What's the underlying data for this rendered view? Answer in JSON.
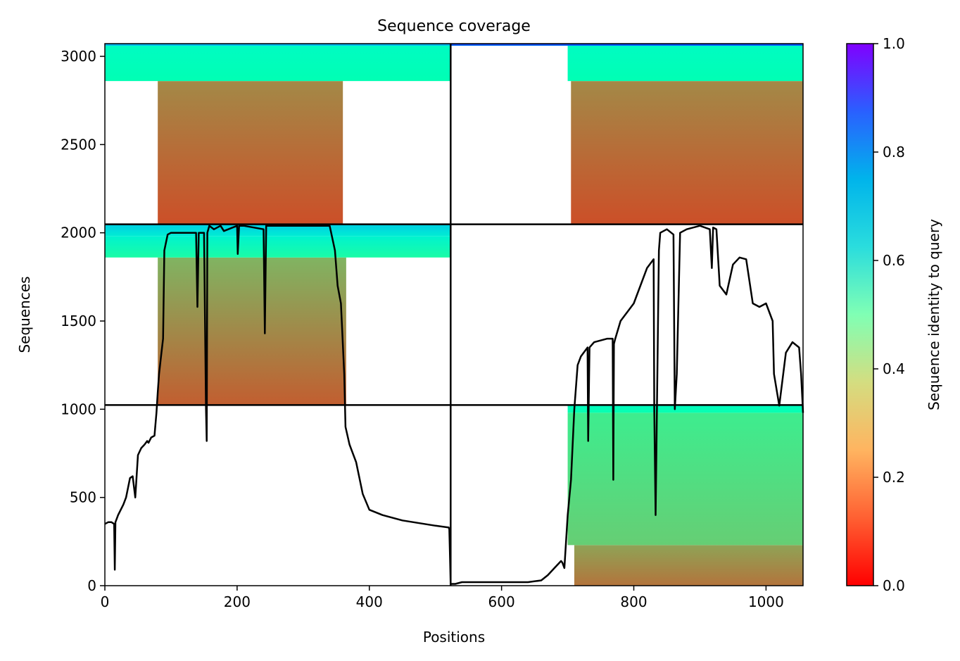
{
  "chart_data": {
    "type": "heatmap",
    "title": "Sequence coverage",
    "xlabel": "Positions",
    "ylabel": "Sequences",
    "xlim": [
      0,
      1056
    ],
    "ylim": [
      0,
      3072
    ],
    "x_ticks": [
      0,
      200,
      400,
      600,
      800,
      1000
    ],
    "y_ticks": [
      0,
      500,
      1000,
      1500,
      2000,
      2500,
      3000
    ],
    "colorbar": {
      "label": "Sequence identity to query",
      "colormap": "rainbow_r",
      "range": [
        0,
        1
      ],
      "ticks": [
        0.0,
        0.2,
        0.4,
        0.6,
        0.8,
        1.0
      ],
      "tick_labels": [
        "0.0",
        "0.2",
        "0.4",
        "0.6",
        "0.8",
        "1.0"
      ]
    },
    "chain_boundaries": {
      "x": [
        523
      ],
      "y": [
        1024,
        2048
      ]
    },
    "blocks": [
      {
        "x": [
          0,
          523
        ],
        "y": [
          1024,
          2048
        ],
        "segments": [
          {
            "y": [
              1024,
              1860
            ],
            "x": [
              80,
              365
            ],
            "identity_bottom": 0.12,
            "identity_top": 0.25
          },
          {
            "y": [
              1860,
              1980
            ],
            "x": [
              0,
              523
            ],
            "identity_bottom": 0.45,
            "identity_top": 0.6
          },
          {
            "y": [
              1980,
              2048
            ],
            "x": [
              0,
              523
            ],
            "identity_bottom": 0.62,
            "identity_top": 0.7
          }
        ]
      },
      {
        "x": [
          0,
          523
        ],
        "y": [
          2048,
          3072
        ],
        "segments": [
          {
            "y": [
              2048,
              2860
            ],
            "x": [
              80,
              360
            ],
            "identity_bottom": 0.1,
            "identity_top": 0.18
          },
          {
            "y": [
              2860,
              3060
            ],
            "x": [
              0,
              523
            ],
            "identity_bottom": 0.5,
            "identity_top": 0.55
          },
          {
            "y": [
              3060,
              3072
            ],
            "x": [
              0,
              523
            ],
            "identity_bottom": 0.72,
            "identity_top": 0.78
          }
        ]
      },
      {
        "x": [
          523,
          1056
        ],
        "y": [
          2048,
          3072
        ],
        "segments": [
          {
            "y": [
              2048,
              2860
            ],
            "x": [
              705,
              1056
            ],
            "identity_bottom": 0.1,
            "identity_top": 0.18
          },
          {
            "y": [
              2860,
              3060
            ],
            "x": [
              700,
              1056
            ],
            "identity_bottom": 0.5,
            "identity_top": 0.55
          },
          {
            "y": [
              3060,
              3072
            ],
            "x": [
              523,
              1056
            ],
            "identity_bottom": 0.85,
            "identity_top": 0.95
          }
        ]
      },
      {
        "x": [
          523,
          1056
        ],
        "y": [
          0,
          1024
        ],
        "segments": [
          {
            "y": [
              0,
              230
            ],
            "x": [
              710,
              1056
            ],
            "identity_bottom": 0.15,
            "identity_top": 0.22
          },
          {
            "y": [
              230,
              980
            ],
            "x": [
              700,
              1056
            ],
            "identity_bottom": 0.3,
            "identity_top": 0.38
          },
          {
            "y": [
              980,
              1024
            ],
            "x": [
              700,
              1056
            ],
            "identity_bottom": 0.48,
            "identity_top": 0.55
          }
        ]
      }
    ],
    "coverage_line": {
      "x": [
        0,
        5,
        10,
        14,
        15,
        16,
        18,
        20,
        28,
        32,
        38,
        42,
        46,
        50,
        55,
        60,
        64,
        66,
        70,
        75,
        78,
        80,
        82,
        85,
        88,
        90,
        95,
        100,
        120,
        138,
        140,
        142,
        145,
        150,
        153,
        154,
        155,
        158,
        165,
        175,
        180,
        200,
        201,
        203,
        210,
        240,
        242,
        244,
        250,
        300,
        340,
        348,
        352,
        357,
        362,
        364,
        370,
        380,
        390,
        400,
        420,
        450,
        500,
        520,
        521,
        522,
        523,
        530,
        540,
        560,
        600,
        640,
        660,
        670,
        680,
        690,
        692,
        695,
        700,
        705,
        710,
        715,
        720,
        730,
        731,
        733,
        740,
        760,
        768,
        769,
        770,
        772,
        780,
        800,
        820,
        830,
        831,
        833,
        838,
        840,
        845,
        850,
        860,
        862,
        865,
        870,
        880,
        900,
        915,
        918,
        920,
        925,
        930,
        940,
        950,
        960,
        970,
        980,
        990,
        1000,
        1010,
        1012,
        1020,
        1030,
        1040,
        1050,
        1053,
        1055,
        1056
      ],
      "y": [
        350,
        360,
        360,
        350,
        90,
        360,
        380,
        400,
        460,
        500,
        610,
        620,
        500,
        740,
        780,
        800,
        820,
        810,
        840,
        850,
        980,
        1100,
        1200,
        1300,
        1400,
        1900,
        1990,
        2000,
        2000,
        2000,
        1580,
        2000,
        2000,
        2000,
        1000,
        820,
        2000,
        2040,
        2020,
        2040,
        2010,
        2040,
        1880,
        2040,
        2040,
        2020,
        1430,
        2040,
        2040,
        2040,
        2040,
        1900,
        1700,
        1600,
        1200,
        900,
        800,
        700,
        520,
        430,
        400,
        370,
        340,
        330,
        320,
        160,
        10,
        10,
        20,
        20,
        20,
        20,
        30,
        60,
        100,
        140,
        130,
        100,
        400,
        600,
        1000,
        1250,
        1300,
        1350,
        820,
        1350,
        1380,
        1400,
        1400,
        600,
        1370,
        1400,
        1500,
        1600,
        1800,
        1850,
        1000,
        400,
        1900,
        2000,
        2010,
        2020,
        1990,
        1000,
        1200,
        2000,
        2020,
        2040,
        2020,
        1800,
        2030,
        2020,
        1700,
        1650,
        1820,
        1860,
        1850,
        1600,
        1580,
        1600,
        1500,
        1200,
        1020,
        1320,
        1380,
        1350,
        1200,
        1050,
        980,
        980
      ]
    }
  }
}
